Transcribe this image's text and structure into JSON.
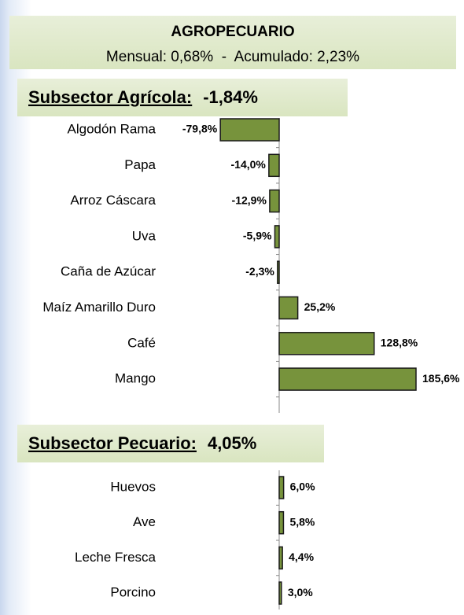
{
  "header": {
    "title": "AGROPECUARIO",
    "subtitle": "Mensual: 0,68%  -  Acumulado: 2,23%"
  },
  "chart_data": [
    {
      "type": "bar",
      "orientation": "horizontal",
      "title": "Subsector Agrícola:",
      "subtitle": "-1,84%",
      "categories": [
        "Algodón Rama",
        "Papa",
        "Arroz Cáscara",
        "Uva",
        "Caña de Azúcar",
        "Maíz Amarillo Duro",
        "Café",
        "Mango"
      ],
      "values": [
        -79.8,
        -14.0,
        -12.9,
        -5.9,
        -2.3,
        25.2,
        128.8,
        185.6
      ],
      "value_labels": [
        "-79,8%",
        "-14,0%",
        "-12,9%",
        "-5,9%",
        "-2,3%",
        "25,2%",
        "128,8%",
        "185,6%"
      ],
      "color": "#77933c",
      "xlim": [
        -80,
        190
      ]
    },
    {
      "type": "bar",
      "orientation": "horizontal",
      "title": "Subsector Pecuario:",
      "subtitle": "4,05%",
      "categories": [
        "Huevos",
        "Ave",
        "Leche Fresca",
        "Porcino"
      ],
      "values": [
        6.0,
        5.8,
        4.4,
        3.0
      ],
      "value_labels": [
        "6,0%",
        "5,8%",
        "4,4%",
        "3,0%"
      ],
      "color": "#77933c",
      "xlim": [
        -80,
        190
      ]
    }
  ]
}
